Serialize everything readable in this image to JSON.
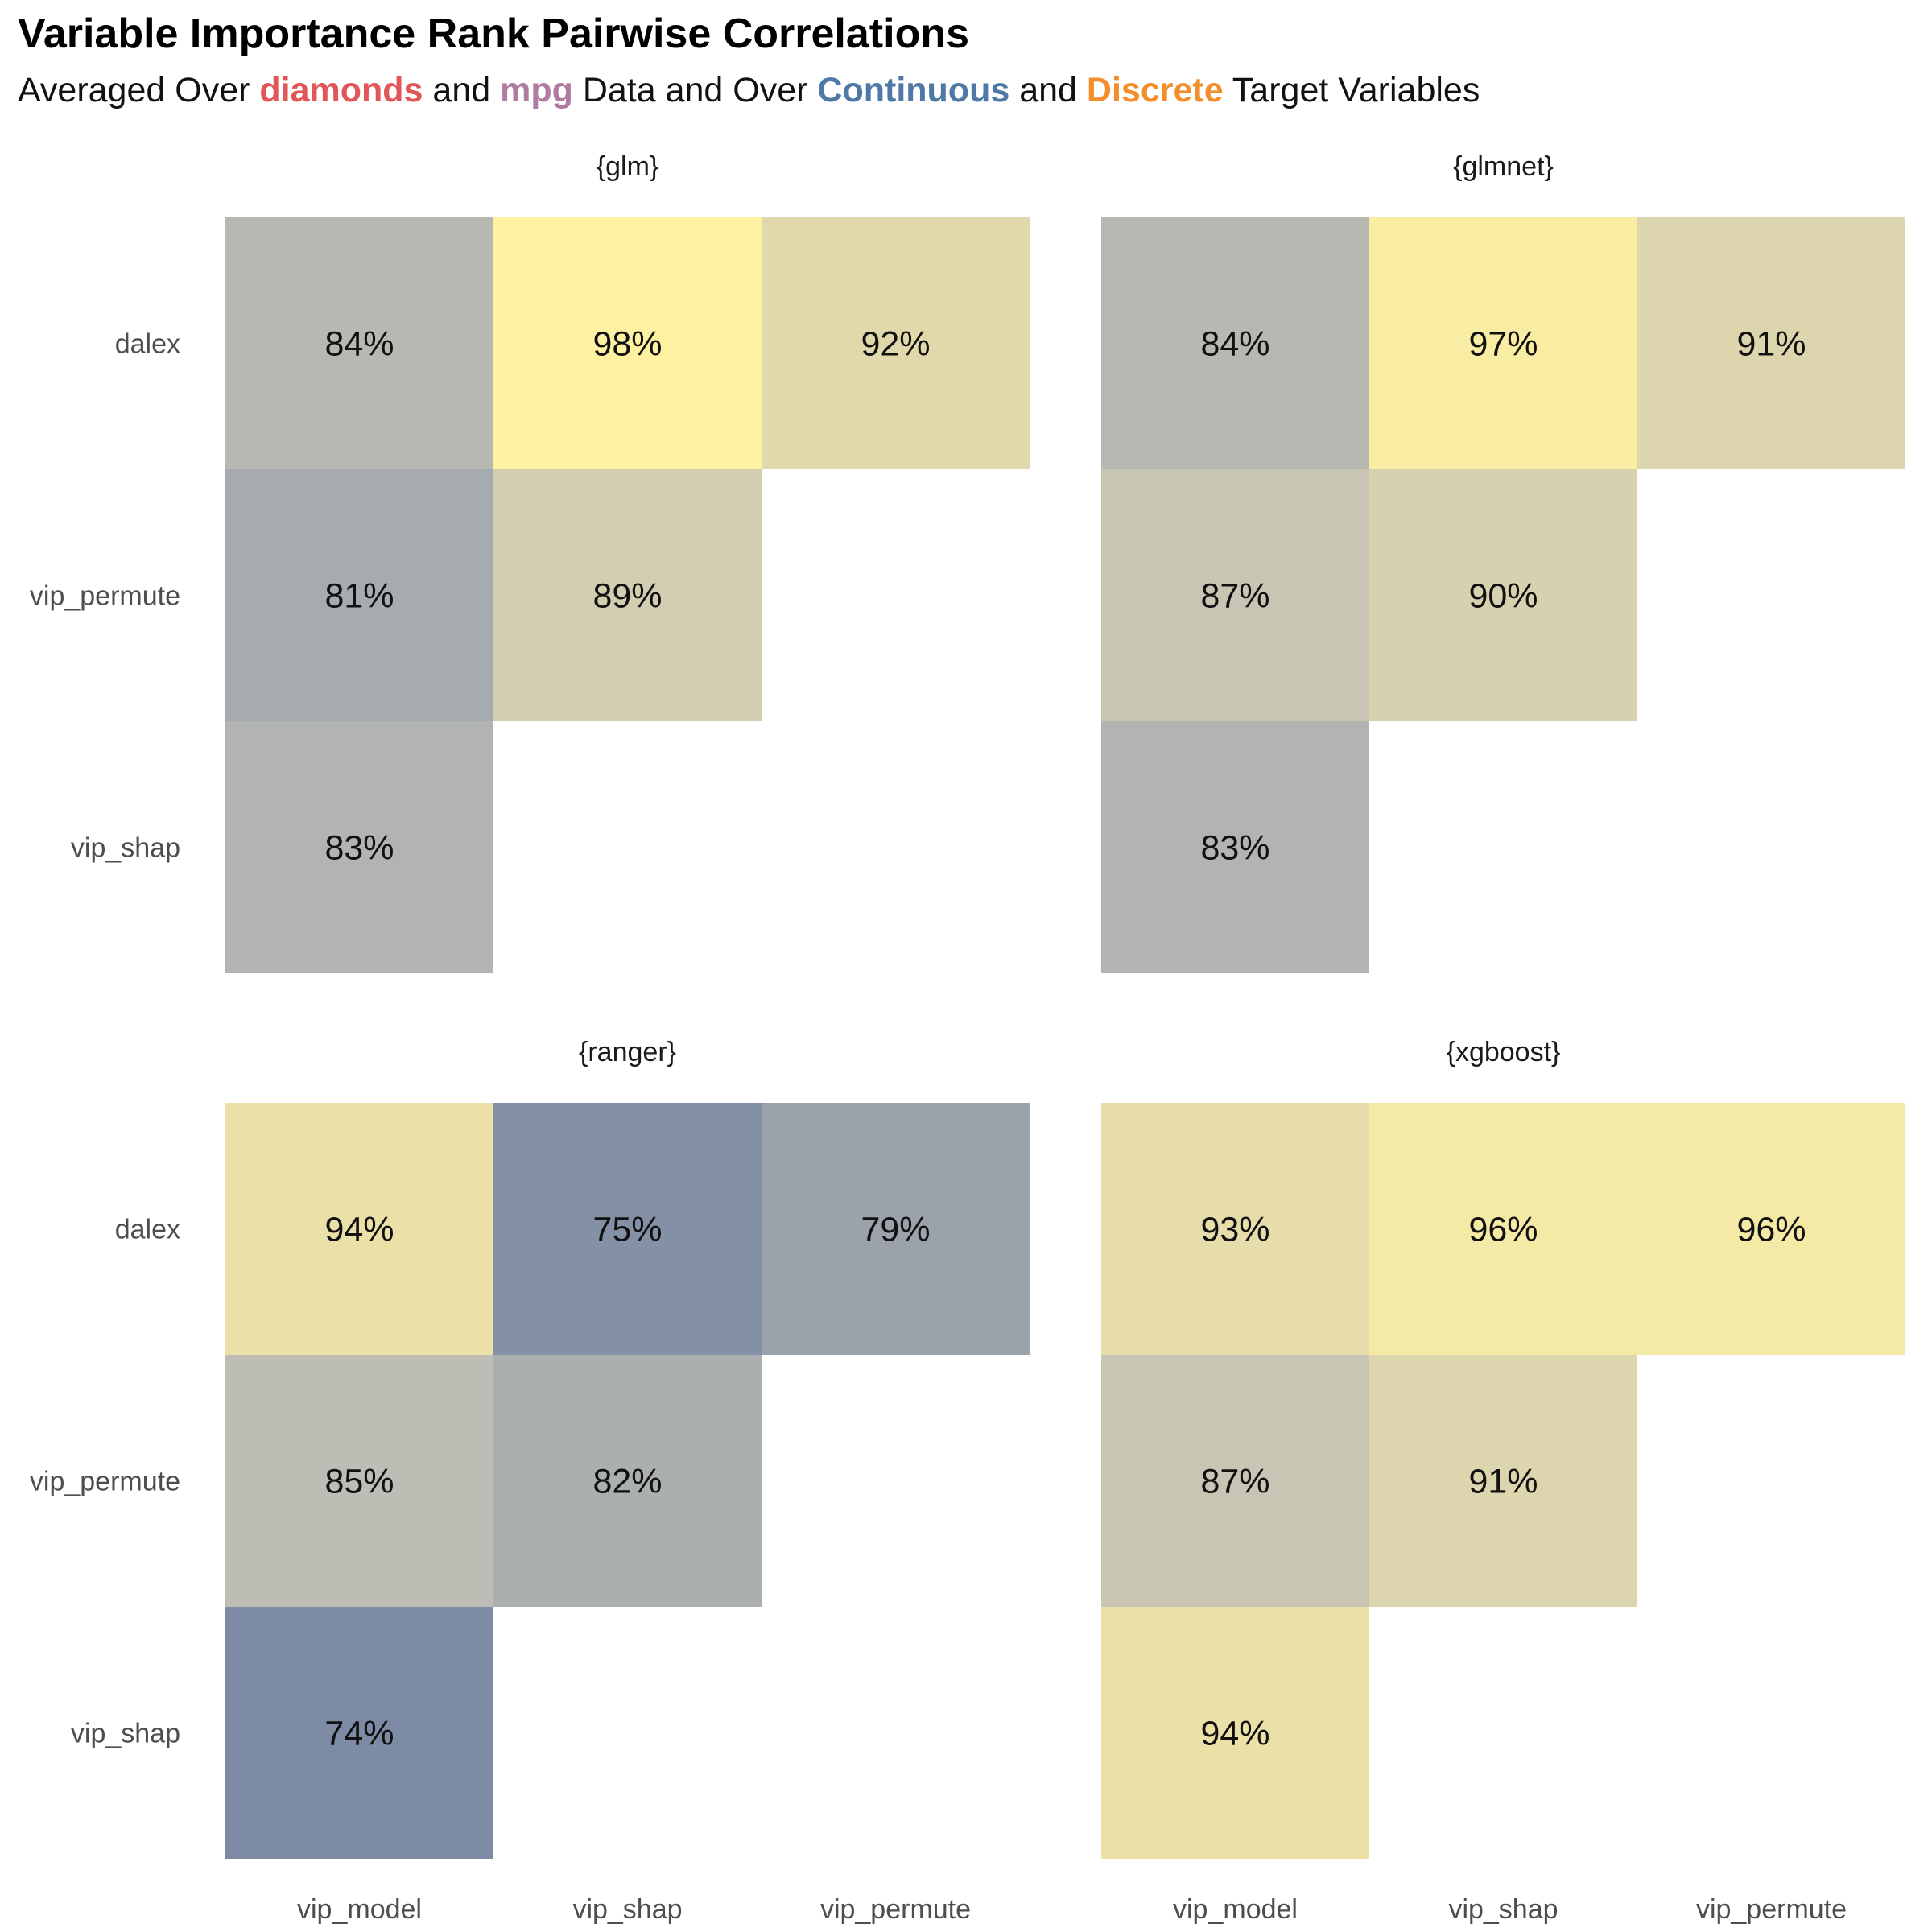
{
  "title": "Variable Importance Rank Pairwise Correlations",
  "subtitle": {
    "p1": "Averaged Over ",
    "diamonds": "diamonds",
    "p2": " and ",
    "mpg": "mpg",
    "p3": " Data and Over ",
    "continuous": "Continuous",
    "p4": " and ",
    "discrete": "Discrete",
    "p5": " Target Variables"
  },
  "colors": {
    "diamonds": "#E15759",
    "mpg": "#B07AA1",
    "continuous": "#4E79A7",
    "discrete": "#F28E2B"
  },
  "chart_data": {
    "type": "heatmap",
    "x_categories": [
      "vip_model",
      "vip_shap",
      "vip_permute"
    ],
    "y_categories": [
      "dalex",
      "vip_permute",
      "vip_shap"
    ],
    "panels": [
      {
        "name": "{glm}",
        "cells": [
          {
            "x": "vip_model",
            "y": "dalex",
            "value": 84,
            "label": "84%"
          },
          {
            "x": "vip_shap",
            "y": "dalex",
            "value": 98,
            "label": "98%"
          },
          {
            "x": "vip_permute",
            "y": "dalex",
            "value": 92,
            "label": "92%"
          },
          {
            "x": "vip_model",
            "y": "vip_permute",
            "value": 81,
            "label": "81%"
          },
          {
            "x": "vip_shap",
            "y": "vip_permute",
            "value": 89,
            "label": "89%"
          },
          {
            "x": "vip_model",
            "y": "vip_shap",
            "value": 83,
            "label": "83%"
          }
        ]
      },
      {
        "name": "{glmnet}",
        "cells": [
          {
            "x": "vip_model",
            "y": "dalex",
            "value": 84,
            "label": "84%"
          },
          {
            "x": "vip_shap",
            "y": "dalex",
            "value": 97,
            "label": "97%"
          },
          {
            "x": "vip_permute",
            "y": "dalex",
            "value": 91,
            "label": "91%"
          },
          {
            "x": "vip_model",
            "y": "vip_permute",
            "value": 87,
            "label": "87%"
          },
          {
            "x": "vip_shap",
            "y": "vip_permute",
            "value": 90,
            "label": "90%"
          },
          {
            "x": "vip_model",
            "y": "vip_shap",
            "value": 83,
            "label": "83%"
          }
        ]
      },
      {
        "name": "{ranger}",
        "cells": [
          {
            "x": "vip_model",
            "y": "dalex",
            "value": 94,
            "label": "94%"
          },
          {
            "x": "vip_shap",
            "y": "dalex",
            "value": 75,
            "label": "75%"
          },
          {
            "x": "vip_permute",
            "y": "dalex",
            "value": 79,
            "label": "79%"
          },
          {
            "x": "vip_model",
            "y": "vip_permute",
            "value": 85,
            "label": "85%"
          },
          {
            "x": "vip_shap",
            "y": "vip_permute",
            "value": 82,
            "label": "82%"
          },
          {
            "x": "vip_model",
            "y": "vip_shap",
            "value": 74,
            "label": "74%"
          }
        ]
      },
      {
        "name": "{xgboost}",
        "cells": [
          {
            "x": "vip_model",
            "y": "dalex",
            "value": 93,
            "label": "93%"
          },
          {
            "x": "vip_shap",
            "y": "dalex",
            "value": 96,
            "label": "96%"
          },
          {
            "x": "vip_permute",
            "y": "dalex",
            "value": 96,
            "label": "96%"
          },
          {
            "x": "vip_model",
            "y": "vip_permute",
            "value": 87,
            "label": "87%"
          },
          {
            "x": "vip_shap",
            "y": "vip_permute",
            "value": 91,
            "label": "91%"
          },
          {
            "x": "vip_model",
            "y": "vip_shap",
            "value": 94,
            "label": "94%"
          }
        ]
      }
    ],
    "legend": "none",
    "grid": false,
    "color_scale": {
      "low_value": 74,
      "high_value": 98,
      "low_color": "#7D8BA5",
      "mid_color": "#C4C1B6",
      "high_color": "#FEF1A1"
    }
  }
}
